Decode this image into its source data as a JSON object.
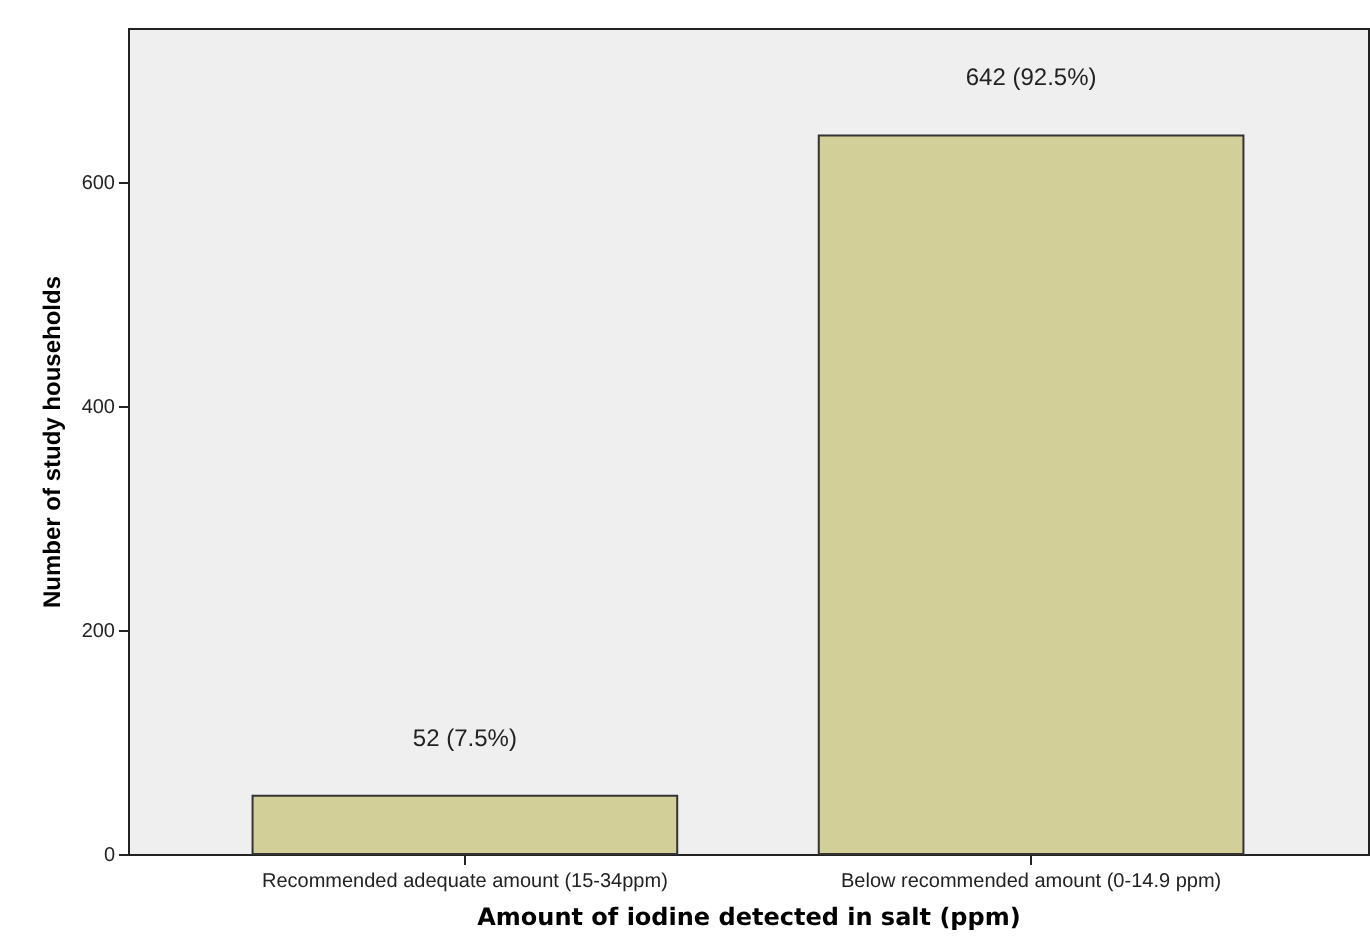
{
  "chart_data": {
    "type": "bar",
    "xlabel": "Amount of iodine detected in salt (ppm)",
    "ylabel": "Number of study households",
    "categories": [
      "Recommended adequate amount (15-34ppm)",
      "Below recommended amount (0-14.9 ppm)"
    ],
    "values": [
      52,
      642
    ],
    "value_labels": [
      "52 (7.5%)",
      "642 (92.5%)"
    ],
    "color": "#d3cf98",
    "ylim": [
      0,
      738
    ],
    "yticks": [
      0,
      200,
      400,
      600
    ],
    "grid": false
  }
}
